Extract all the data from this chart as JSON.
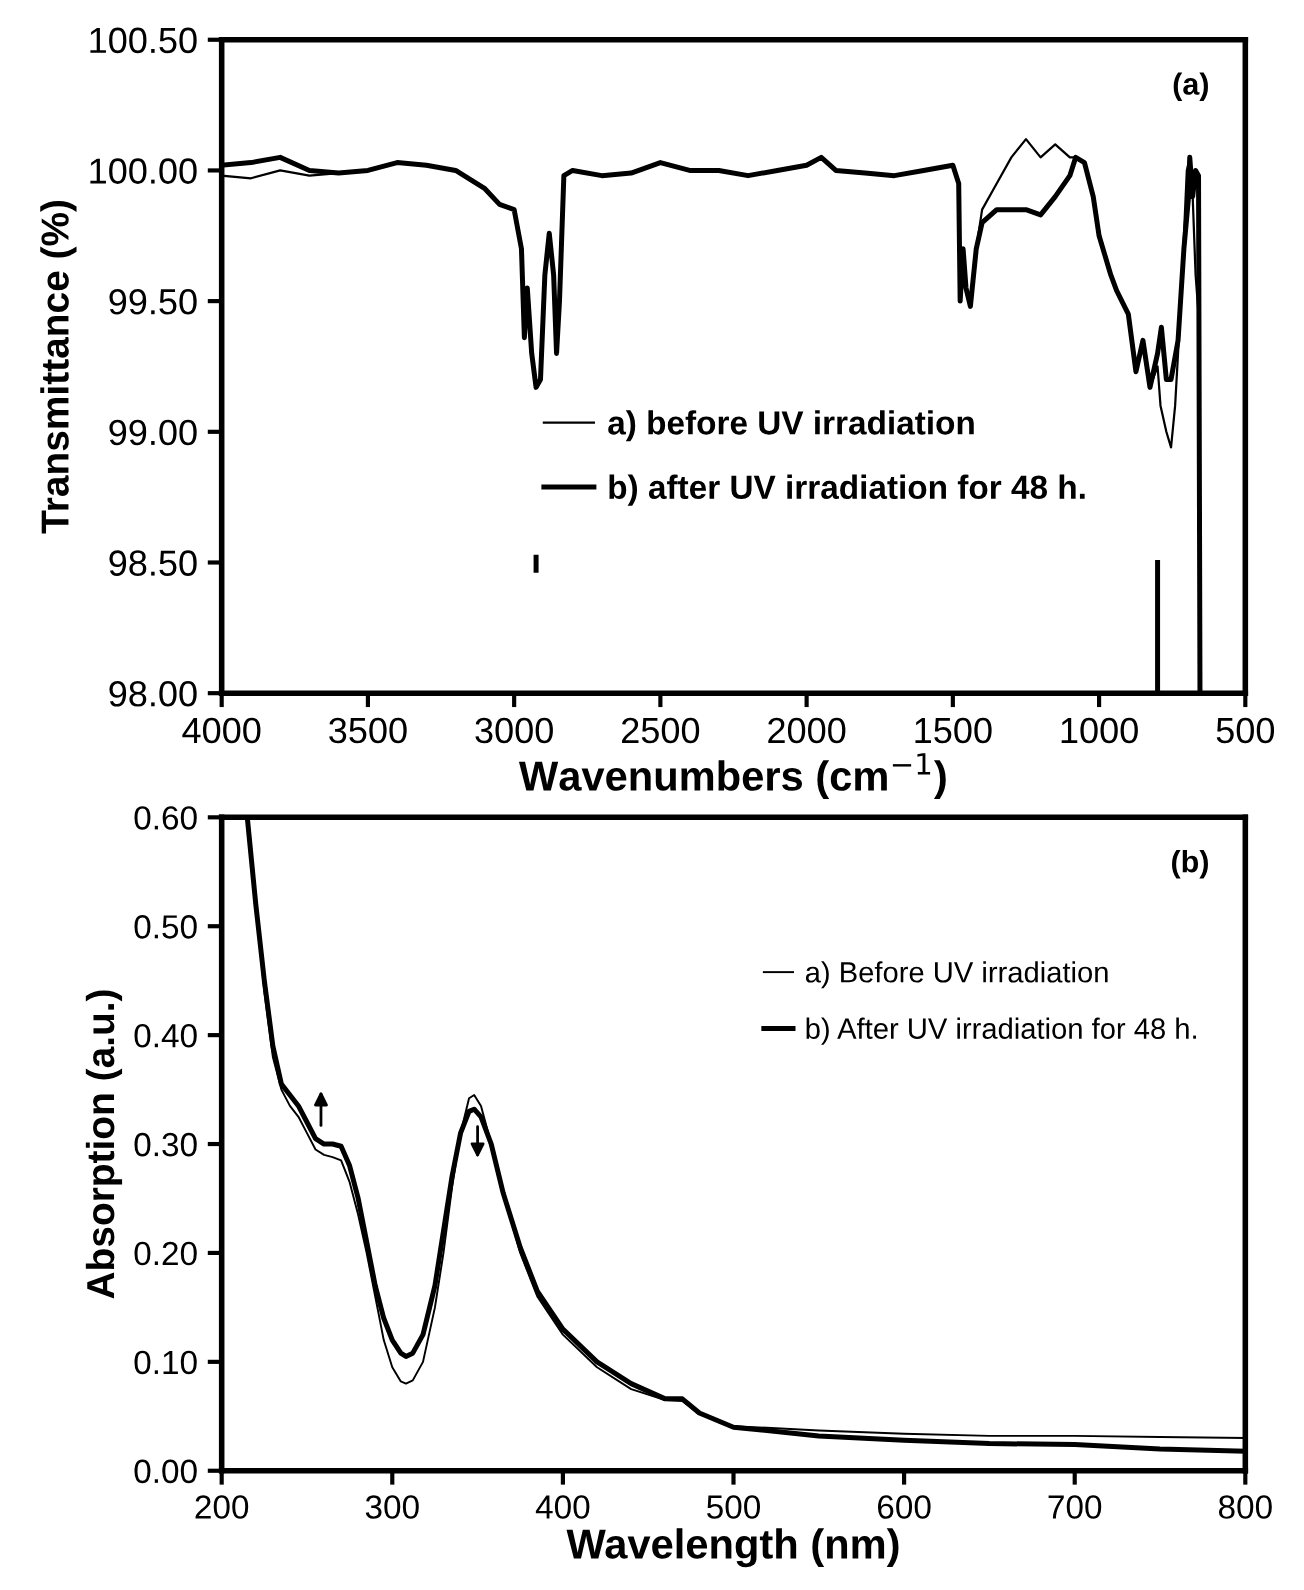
{
  "chart_data": [
    {
      "type": "line",
      "xlabel": "Wavenumbers (cm$^{−1}$)",
      "ylabel": "Transmittance (%)",
      "annotations": [
        "(a)"
      ],
      "xlim": [
        4000,
        500
      ],
      "xticks": [
        4000,
        3500,
        3000,
        2500,
        2000,
        1500,
        1000,
        500
      ],
      "ylim": [
        98.0,
        100.5
      ],
      "yticks": [
        {
          "value": 98.0,
          "label": "98.00"
        },
        {
          "value": 98.5,
          "label": "98.50"
        },
        {
          "value": 99.0,
          "label": "99.00"
        },
        {
          "value": 99.5,
          "label": "99.50"
        },
        {
          "value": 100.0,
          "label": "100.00"
        },
        {
          "value": 100.5,
          "label": "100.50"
        }
      ],
      "legend": "center",
      "grid": false,
      "series": [
        {
          "name": "a) before UV irradiation",
          "color": "#000000",
          "line_style": "solid",
          "x": [
            4000,
            3900,
            3800,
            3700,
            3600,
            3500,
            3400,
            3300,
            3200,
            3100,
            3050,
            3000,
            2975,
            2965,
            2955,
            2940,
            2925,
            2910,
            2895,
            2880,
            2865,
            2855,
            2845,
            2830,
            2800,
            2700,
            2600,
            2500,
            2400,
            2300,
            2200,
            2100,
            2000,
            1950,
            1900,
            1800,
            1700,
            1600,
            1500,
            1480,
            1475,
            1465,
            1455,
            1440,
            1420,
            1400,
            1350,
            1300,
            1250,
            1200,
            1150,
            1100,
            1080,
            1050,
            1020,
            1000,
            960,
            940,
            900,
            874,
            850,
            826,
            800,
            790,
            770,
            754,
            740,
            720,
            700,
            690,
            680,
            670,
            660
          ],
          "values": [
            99.98,
            99.97,
            100.0,
            99.98,
            99.99,
            100.0,
            100.03,
            100.02,
            100.0,
            99.93,
            99.87,
            99.85,
            99.7,
            99.36,
            99.55,
            99.3,
            99.17,
            99.2,
            99.6,
            99.76,
            99.6,
            99.3,
            99.5,
            99.98,
            100.0,
            99.98,
            99.99,
            100.03,
            100.0,
            100.0,
            99.98,
            100.0,
            100.02,
            100.05,
            100.0,
            99.99,
            99.98,
            100.0,
            100.02,
            99.95,
            99.5,
            99.7,
            99.55,
            99.48,
            99.7,
            99.85,
            99.95,
            100.05,
            100.12,
            100.05,
            100.1,
            100.05,
            100.05,
            100.03,
            99.9,
            99.75,
            99.6,
            99.54,
            99.45,
            99.23,
            99.35,
            99.17,
            99.25,
            99.1,
            99.0,
            98.94,
            99.1,
            99.5,
            100.0,
            100.05,
            99.9,
            99.6,
            99.45
          ]
        },
        {
          "name": "b) after UV irradiation for 48 h.",
          "color": "#000000",
          "line_style": "solid",
          "x": [
            4000,
            3900,
            3800,
            3700,
            3600,
            3500,
            3400,
            3300,
            3200,
            3100,
            3050,
            3000,
            2975,
            2965,
            2955,
            2940,
            2925,
            2910,
            2895,
            2880,
            2865,
            2855,
            2845,
            2830,
            2800,
            2700,
            2600,
            2500,
            2400,
            2300,
            2200,
            2100,
            2000,
            1950,
            1900,
            1800,
            1700,
            1600,
            1500,
            1480,
            1475,
            1465,
            1455,
            1440,
            1420,
            1400,
            1350,
            1300,
            1250,
            1200,
            1150,
            1100,
            1080,
            1050,
            1020,
            1000,
            960,
            940,
            900,
            874,
            850,
            826,
            800,
            787,
            770,
            754,
            730,
            710,
            694,
            690,
            680,
            670,
            660,
            655
          ],
          "values": [
            100.02,
            100.03,
            100.05,
            100.0,
            99.99,
            100.0,
            100.03,
            100.02,
            100.0,
            99.93,
            99.87,
            99.85,
            99.7,
            99.36,
            99.55,
            99.3,
            99.17,
            99.2,
            99.6,
            99.76,
            99.6,
            99.3,
            99.5,
            99.98,
            100.0,
            99.98,
            99.99,
            100.03,
            100.0,
            100.0,
            99.98,
            100.0,
            100.02,
            100.05,
            100.0,
            99.99,
            99.98,
            100.0,
            100.02,
            99.95,
            99.5,
            99.7,
            99.55,
            99.48,
            99.7,
            99.8,
            99.85,
            99.85,
            99.85,
            99.83,
            99.9,
            99.98,
            100.05,
            100.03,
            99.9,
            99.75,
            99.6,
            99.54,
            99.45,
            99.23,
            99.35,
            99.17,
            99.3,
            99.4,
            99.2,
            99.2,
            99.35,
            99.7,
            99.9,
            100.05,
            99.9,
            100.0,
            99.98,
            98.0
          ]
        },
        {
          "color": "#000000",
          "line_style": "solid",
          "x": [
            2925,
            2925,
            null,
            800,
            800
          ],
          "values": [
            98.52,
            98.47,
            null,
            98.5,
            98.0
          ]
        }
      ]
    },
    {
      "type": "line",
      "xlabel": "Wavelength (nm)",
      "ylabel": "Absorption (a.u.)",
      "annotations": [
        "(b)"
      ],
      "xlim": [
        200,
        800
      ],
      "xticks": [
        200,
        300,
        400,
        500,
        600,
        700,
        800
      ],
      "ylim": [
        0.0,
        0.6
      ],
      "yticks": [
        {
          "value": 0.0,
          "label": "0.00"
        },
        {
          "value": 0.1,
          "label": "0.10"
        },
        {
          "value": 0.2,
          "label": "0.20"
        },
        {
          "value": 0.3,
          "label": "0.30"
        },
        {
          "value": 0.4,
          "label": "0.40"
        },
        {
          "value": 0.5,
          "label": "0.50"
        },
        {
          "value": 0.6,
          "label": "0.60"
        }
      ],
      "legend": "upper right",
      "grid": false,
      "series": [
        {
          "name": "a) Before UV irradiation",
          "color": "#000000",
          "line_style": "solid",
          "x": [
            215,
            220,
            225,
            230,
            235,
            240,
            245,
            250,
            255,
            260,
            265,
            270,
            275,
            280,
            285,
            290,
            295,
            300,
            305,
            308,
            312,
            318,
            325,
            330,
            335,
            340,
            345,
            348,
            352,
            358,
            365,
            375,
            385,
            400,
            420,
            440,
            460,
            470,
            480,
            500,
            550,
            600,
            650,
            700,
            750,
            800
          ],
          "values": [
            0.6,
            0.52,
            0.44,
            0.38,
            0.35,
            0.335,
            0.325,
            0.31,
            0.295,
            0.29,
            0.288,
            0.285,
            0.265,
            0.235,
            0.2,
            0.16,
            0.12,
            0.095,
            0.082,
            0.08,
            0.083,
            0.1,
            0.15,
            0.2,
            0.26,
            0.31,
            0.342,
            0.345,
            0.335,
            0.3,
            0.255,
            0.2,
            0.16,
            0.125,
            0.095,
            0.075,
            0.065,
            0.064,
            0.052,
            0.041,
            0.037,
            0.034,
            0.032,
            0.032,
            0.031,
            0.03
          ]
        },
        {
          "name": "b) After UV irradiation for 48 h.",
          "color": "#000000",
          "line_style": "solid",
          "x": [
            215,
            220,
            225,
            230,
            235,
            240,
            245,
            250,
            255,
            260,
            265,
            270,
            275,
            280,
            285,
            290,
            295,
            300,
            305,
            308,
            312,
            318,
            325,
            330,
            335,
            340,
            345,
            348,
            352,
            358,
            365,
            375,
            385,
            400,
            420,
            440,
            460,
            470,
            480,
            500,
            550,
            600,
            650,
            700,
            750,
            800
          ],
          "values": [
            0.6,
            0.52,
            0.45,
            0.39,
            0.355,
            0.345,
            0.335,
            0.32,
            0.305,
            0.3,
            0.3,
            0.298,
            0.28,
            0.25,
            0.21,
            0.17,
            0.14,
            0.12,
            0.108,
            0.105,
            0.108,
            0.125,
            0.17,
            0.22,
            0.27,
            0.31,
            0.33,
            0.332,
            0.325,
            0.3,
            0.255,
            0.205,
            0.165,
            0.13,
            0.1,
            0.08,
            0.066,
            0.066,
            0.053,
            0.04,
            0.032,
            0.028,
            0.025,
            0.024,
            0.02,
            0.018
          ]
        }
      ]
    }
  ]
}
